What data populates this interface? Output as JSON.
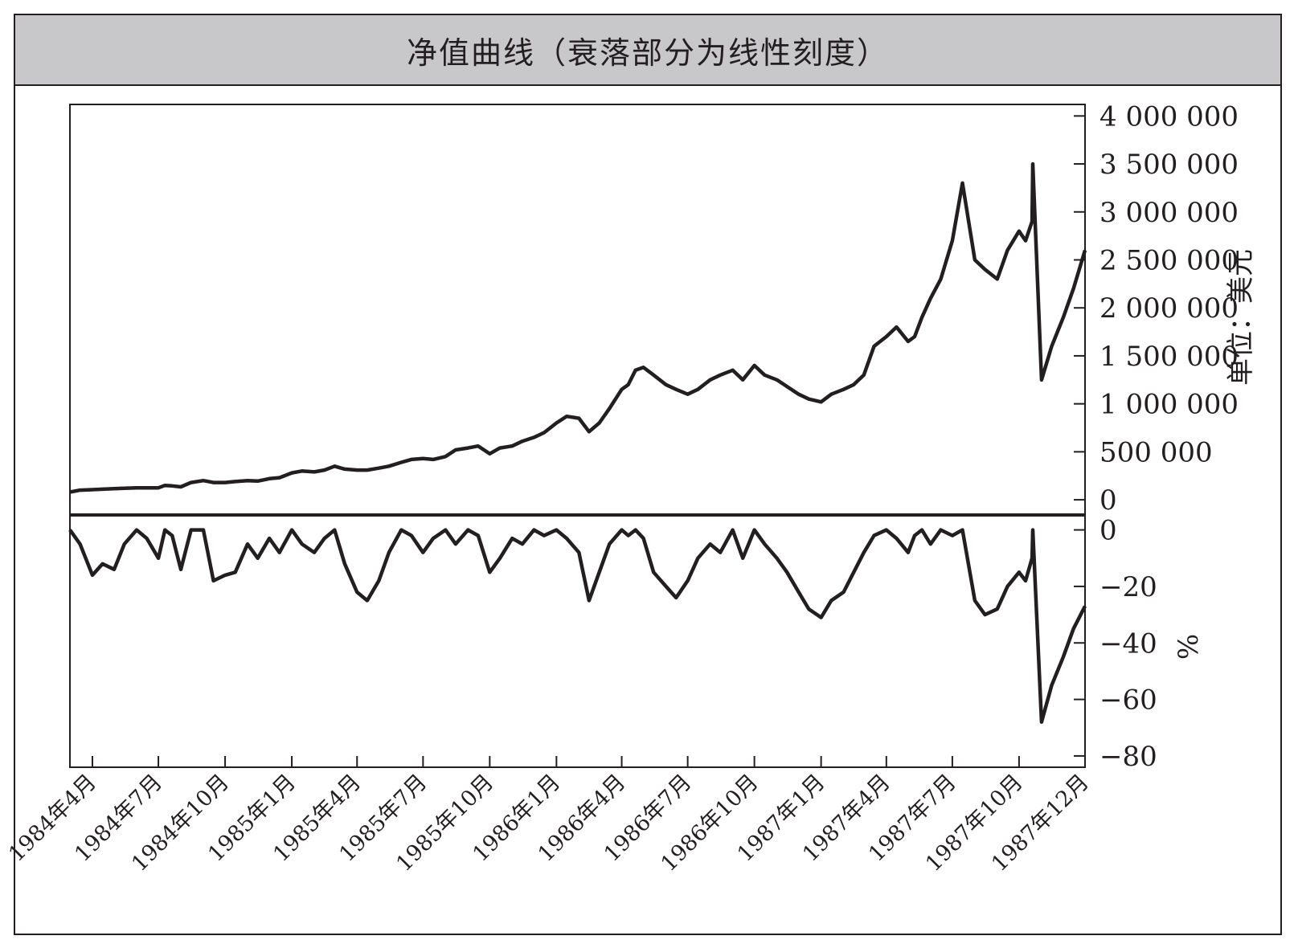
{
  "chart_data": {
    "type": "line",
    "title": "净值曲线（衰落部分为线性刻度）",
    "x_start": "1984-03",
    "x_end": "1987-12",
    "x_ticks": [
      "1984年4月",
      "1984年7月",
      "1984年10月",
      "1985年1月",
      "1985年4月",
      "1985年7月",
      "1985年10月",
      "1986年1月",
      "1986年4月",
      "1986年7月",
      "1986年10月",
      "1987年1月",
      "1987年4月",
      "1987年7月",
      "1987年10月",
      "1987年12月"
    ],
    "panels": [
      {
        "name": "equity",
        "ylabel": "单位：美元",
        "ylim": [
          -150000,
          4120000
        ],
        "yticks": [
          0,
          500000,
          1000000,
          1500000,
          2000000,
          2500000,
          3000000,
          3500000,
          4000000
        ],
        "ytick_labels": [
          "0",
          "500 000",
          "1 000 000",
          "1 500 000",
          "2 000 000",
          "2 500 000",
          "3 000 000",
          "3 500 000",
          "4 000 000"
        ],
        "series": [
          {
            "x": [
              "1984-03-01",
              "1984-03-15",
              "1984-04-01",
              "1984-04-15",
              "1984-05-01",
              "1984-05-15",
              "1984-06-01",
              "1984-06-15",
              "1984-07-01",
              "1984-07-10",
              "1984-07-20",
              "1984-08-01",
              "1984-08-15",
              "1984-09-01",
              "1984-09-15",
              "1984-10-01",
              "1984-10-15",
              "1984-11-01",
              "1984-11-15",
              "1984-12-01",
              "1984-12-15",
              "1985-01-01",
              "1985-01-15",
              "1985-02-01",
              "1985-02-15",
              "1985-03-01",
              "1985-03-15",
              "1985-04-01",
              "1985-04-15",
              "1985-05-01",
              "1985-05-15",
              "1985-06-01",
              "1985-06-15",
              "1985-07-01",
              "1985-07-15",
              "1985-08-01",
              "1985-08-15",
              "1985-09-01",
              "1985-09-15",
              "1985-10-01",
              "1985-10-15",
              "1985-11-01",
              "1985-11-15",
              "1985-12-01",
              "1985-12-15",
              "1986-01-01",
              "1986-01-15",
              "1986-02-01",
              "1986-02-15",
              "1986-03-01",
              "1986-03-15",
              "1986-04-01",
              "1986-04-10",
              "1986-04-20",
              "1986-05-01",
              "1986-05-15",
              "1986-06-01",
              "1986-06-15",
              "1986-07-01",
              "1986-07-15",
              "1986-08-01",
              "1986-08-15",
              "1986-09-01",
              "1986-09-15",
              "1986-10-01",
              "1986-10-15",
              "1986-11-01",
              "1986-11-15",
              "1986-12-01",
              "1986-12-15",
              "1987-01-01",
              "1987-01-15",
              "1987-02-01",
              "1987-02-15",
              "1987-03-01",
              "1987-03-15",
              "1987-04-01",
              "1987-04-15",
              "1987-05-01",
              "1987-05-10",
              "1987-05-20",
              "1987-06-01",
              "1987-06-15",
              "1987-07-01",
              "1987-07-15",
              "1987-08-01",
              "1987-08-15",
              "1987-09-01",
              "1987-09-15",
              "1987-10-01",
              "1987-10-10",
              "1987-10-19",
              "1987-10-20",
              "1987-11-01",
              "1987-11-15",
              "1987-12-01",
              "1987-12-15",
              "1987-12-31"
            ],
            "values": [
              80000,
              100000,
              105000,
              110000,
              115000,
              120000,
              125000,
              125000,
              125000,
              150000,
              145000,
              135000,
              180000,
              200000,
              180000,
              180000,
              190000,
              200000,
              195000,
              220000,
              230000,
              280000,
              300000,
              290000,
              310000,
              350000,
              320000,
              310000,
              310000,
              330000,
              350000,
              390000,
              420000,
              430000,
              420000,
              450000,
              520000,
              540000,
              560000,
              480000,
              540000,
              560000,
              610000,
              650000,
              700000,
              800000,
              870000,
              850000,
              710000,
              800000,
              950000,
              1150000,
              1200000,
              1350000,
              1380000,
              1300000,
              1200000,
              1150000,
              1100000,
              1150000,
              1250000,
              1300000,
              1350000,
              1250000,
              1400000,
              1300000,
              1250000,
              1180000,
              1100000,
              1050000,
              1020000,
              1100000,
              1150000,
              1200000,
              1300000,
              1600000,
              1700000,
              1800000,
              1650000,
              1700000,
              1900000,
              2100000,
              2300000,
              2700000,
              3300000,
              2500000,
              2400000,
              2300000,
              2600000,
              2800000,
              2700000,
              2900000,
              3500000,
              1250000,
              1600000,
              1900000,
              2200000,
              2600000
            ]
          }
        ]
      },
      {
        "name": "drawdown",
        "ylabel": "%",
        "ylim": [
          -84,
          5
        ],
        "yticks": [
          0,
          -20,
          -40,
          -60,
          -80
        ],
        "ytick_labels": [
          "0",
          "−20",
          "−40",
          "−60",
          "−80"
        ],
        "series": [
          {
            "x": [
              "1984-03-01",
              "1984-03-15",
              "1984-04-01",
              "1984-04-15",
              "1984-05-01",
              "1984-05-15",
              "1984-06-01",
              "1984-06-15",
              "1984-07-01",
              "1984-07-10",
              "1984-07-20",
              "1984-08-01",
              "1984-08-15",
              "1984-09-01",
              "1984-09-15",
              "1984-10-01",
              "1984-10-15",
              "1984-11-01",
              "1984-11-15",
              "1984-12-01",
              "1984-12-15",
              "1985-01-01",
              "1985-01-15",
              "1985-02-01",
              "1985-02-15",
              "1985-03-01",
              "1985-03-15",
              "1985-04-01",
              "1985-04-15",
              "1985-05-01",
              "1985-05-15",
              "1985-06-01",
              "1985-06-15",
              "1985-07-01",
              "1985-07-15",
              "1985-08-01",
              "1985-08-15",
              "1985-09-01",
              "1985-09-15",
              "1985-10-01",
              "1985-10-15",
              "1985-11-01",
              "1985-11-15",
              "1985-12-01",
              "1985-12-15",
              "1986-01-01",
              "1986-01-15",
              "1986-02-01",
              "1986-02-15",
              "1986-03-01",
              "1986-03-15",
              "1986-04-01",
              "1986-04-10",
              "1986-04-20",
              "1986-05-01",
              "1986-05-15",
              "1986-06-01",
              "1986-06-15",
              "1986-07-01",
              "1986-07-15",
              "1986-08-01",
              "1986-08-15",
              "1986-09-01",
              "1986-09-15",
              "1986-10-01",
              "1986-10-15",
              "1986-11-01",
              "1986-11-15",
              "1986-12-01",
              "1986-12-15",
              "1987-01-01",
              "1987-01-15",
              "1987-02-01",
              "1987-02-15",
              "1987-03-01",
              "1987-03-15",
              "1987-04-01",
              "1987-04-15",
              "1987-05-01",
              "1987-05-10",
              "1987-05-20",
              "1987-06-01",
              "1987-06-15",
              "1987-07-01",
              "1987-07-15",
              "1987-08-01",
              "1987-08-15",
              "1987-09-01",
              "1987-09-15",
              "1987-10-01",
              "1987-10-10",
              "1987-10-19",
              "1987-10-20",
              "1987-11-01",
              "1987-11-15",
              "1987-12-01",
              "1987-12-15",
              "1987-12-31"
            ],
            "values": [
              0,
              -5,
              -16,
              -12,
              -14,
              -5,
              0,
              -3,
              -10,
              0,
              -2,
              -14,
              0,
              0,
              -18,
              -16,
              -15,
              -5,
              -10,
              -3,
              -8,
              0,
              -5,
              -8,
              -3,
              0,
              -12,
              -22,
              -25,
              -18,
              -8,
              0,
              -2,
              -8,
              -3,
              0,
              -5,
              0,
              -2,
              -15,
              -10,
              -3,
              -5,
              0,
              -2,
              0,
              -3,
              -8,
              -25,
              -15,
              -5,
              0,
              -2,
              0,
              -3,
              -15,
              -20,
              -24,
              -18,
              -10,
              -5,
              -8,
              0,
              -10,
              0,
              -5,
              -10,
              -15,
              -22,
              -28,
              -31,
              -25,
              -22,
              -15,
              -8,
              -2,
              0,
              -3,
              -8,
              -2,
              0,
              -5,
              0,
              -2,
              0,
              -25,
              -30,
              -28,
              -20,
              -15,
              -18,
              -10,
              0,
              -68,
              -55,
              -45,
              -35,
              -27
            ]
          }
        ]
      }
    ]
  }
}
